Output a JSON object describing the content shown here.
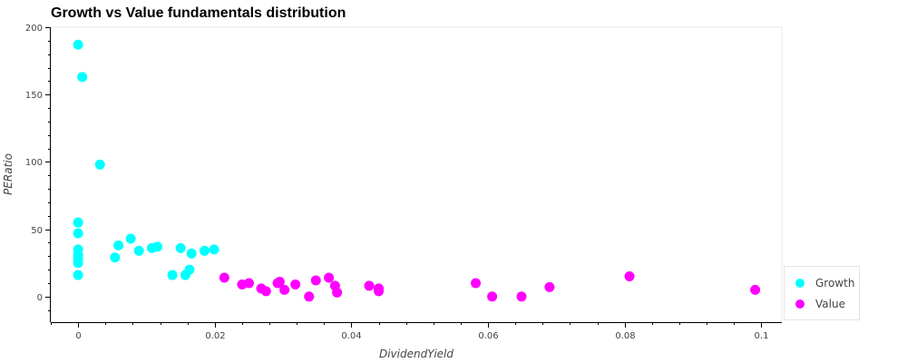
{
  "chart_data": {
    "type": "scatter",
    "title": "Growth vs Value fundamentals distribution",
    "xlabel": "DividendYield",
    "ylabel": "PERatio",
    "xlim": [
      -0.004,
      0.103
    ],
    "ylim": [
      -19,
      200
    ],
    "x_ticks": [
      0,
      0.02,
      0.04,
      0.06,
      0.08,
      0.1
    ],
    "x_tick_labels": [
      "0",
      "0.02",
      "0.04",
      "0.06",
      "0.08",
      "0.1"
    ],
    "y_ticks": [
      0,
      50,
      100,
      150,
      200
    ],
    "y_tick_labels": [
      "0",
      "50",
      "100",
      "150",
      "200"
    ],
    "grid": false,
    "legend_position": "bottom-right",
    "series": [
      {
        "name": "Growth",
        "color": "#00ffff",
        "points": [
          [
            0.0,
            187
          ],
          [
            0.0006,
            163
          ],
          [
            0.0032,
            98
          ],
          [
            0.0,
            55
          ],
          [
            0.0,
            47
          ],
          [
            0.0,
            35
          ],
          [
            0.0,
            31
          ],
          [
            0.0,
            28
          ],
          [
            0.0,
            25
          ],
          [
            0.0,
            16
          ],
          [
            0.0054,
            29
          ],
          [
            0.0059,
            38
          ],
          [
            0.0077,
            43
          ],
          [
            0.0089,
            34
          ],
          [
            0.0108,
            36
          ],
          [
            0.0116,
            37
          ],
          [
            0.0138,
            16
          ],
          [
            0.015,
            36
          ],
          [
            0.0157,
            16
          ],
          [
            0.0163,
            20
          ],
          [
            0.0166,
            32
          ],
          [
            0.0185,
            34
          ],
          [
            0.0199,
            35
          ]
        ]
      },
      {
        "name": "Value",
        "color": "#ff00ff",
        "points": [
          [
            0.0214,
            14
          ],
          [
            0.024,
            9
          ],
          [
            0.025,
            10
          ],
          [
            0.0268,
            6
          ],
          [
            0.0275,
            4
          ],
          [
            0.0292,
            10
          ],
          [
            0.0295,
            11
          ],
          [
            0.0302,
            5
          ],
          [
            0.0318,
            9
          ],
          [
            0.0338,
            0
          ],
          [
            0.0348,
            12
          ],
          [
            0.0367,
            14
          ],
          [
            0.0376,
            8
          ],
          [
            0.0379,
            3
          ],
          [
            0.0426,
            8
          ],
          [
            0.044,
            6
          ],
          [
            0.044,
            4
          ],
          [
            0.0582,
            10
          ],
          [
            0.0606,
            0
          ],
          [
            0.0649,
            0
          ],
          [
            0.069,
            7
          ],
          [
            0.0807,
            15
          ],
          [
            0.0991,
            5
          ]
        ]
      }
    ]
  }
}
